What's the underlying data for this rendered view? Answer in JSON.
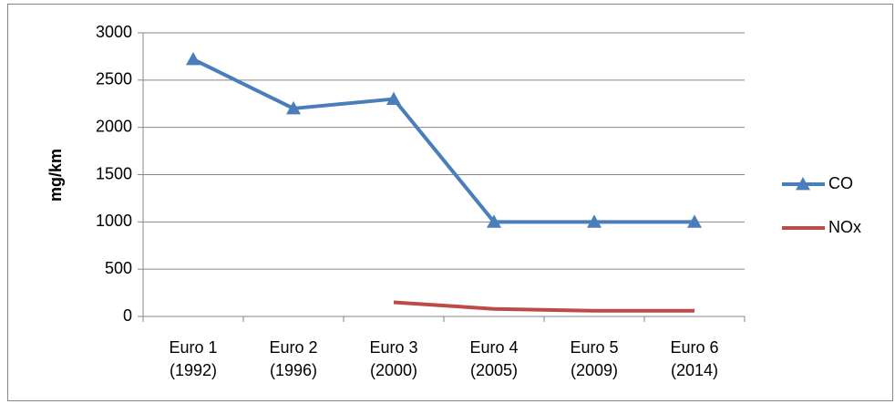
{
  "chart_data": {
    "type": "line",
    "y_label": "mg/km",
    "categories": [
      "Euro 1 (1992)",
      "Euro 2 (1996)",
      "Euro 3 (2000)",
      "Euro 4 (2005)",
      "Euro 5 (2009)",
      "Euro 6 (2014)"
    ],
    "series": [
      {
        "name": "CO",
        "color": "#4a7ebb",
        "marker": "triangle",
        "values": [
          2720,
          2200,
          2300,
          1000,
          1000,
          1000
        ]
      },
      {
        "name": "NOx",
        "color": "#be4b48",
        "marker": "none",
        "values": [
          null,
          null,
          150,
          80,
          60,
          60
        ]
      }
    ],
    "ylim": [
      0,
      3000
    ],
    "yticks": [
      0,
      500,
      1000,
      1500,
      2000,
      2500,
      3000
    ],
    "grid": true,
    "legend": "right"
  }
}
